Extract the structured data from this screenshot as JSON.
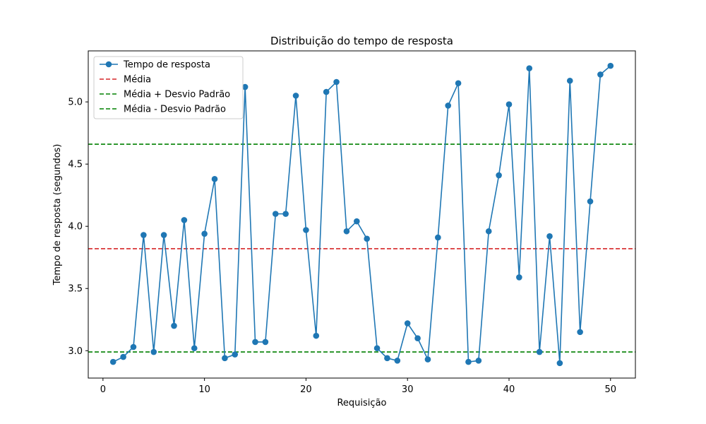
{
  "chart_data": {
    "type": "line",
    "title": "Distribuição do tempo de resposta",
    "xlabel": "Requisição",
    "ylabel": "Tempo de resposta (segundos)",
    "xlim": [
      -1.45,
      52.45
    ],
    "ylim": [
      2.78,
      5.41
    ],
    "x_ticks": [
      0,
      10,
      20,
      30,
      40,
      50
    ],
    "x_tick_labels": [
      "0",
      "10",
      "20",
      "30",
      "40",
      "50"
    ],
    "y_ticks": [
      3.0,
      3.5,
      4.0,
      4.5,
      5.0
    ],
    "y_tick_labels": [
      "3.0",
      "3.5",
      "4.0",
      "4.5",
      "5.0"
    ],
    "grid": false,
    "legend_placement": "upper-left",
    "series": [
      {
        "name": "Tempo de resposta",
        "color": "#1f77b4",
        "style": "solid",
        "marker": "circle",
        "x": [
          1,
          2,
          3,
          4,
          5,
          6,
          7,
          8,
          9,
          10,
          11,
          12,
          13,
          14,
          15,
          16,
          17,
          18,
          19,
          20,
          21,
          22,
          23,
          24,
          25,
          26,
          27,
          28,
          29,
          30,
          31,
          32,
          33,
          34,
          35,
          36,
          37,
          38,
          39,
          40,
          41,
          42,
          43,
          44,
          45,
          46,
          47,
          48,
          49,
          50
        ],
        "values": [
          2.91,
          2.95,
          3.03,
          3.93,
          2.99,
          3.93,
          3.2,
          4.05,
          3.02,
          3.94,
          4.38,
          2.94,
          2.97,
          5.12,
          3.07,
          3.07,
          4.1,
          4.1,
          5.05,
          3.97,
          3.12,
          5.08,
          5.16,
          3.96,
          4.04,
          3.9,
          3.02,
          2.94,
          2.92,
          3.22,
          3.1,
          2.93,
          3.91,
          4.97,
          5.15,
          2.91,
          2.92,
          3.96,
          4.41,
          4.98,
          3.59,
          5.27,
          2.99,
          3.92,
          2.9,
          5.17,
          3.15,
          4.2,
          5.22,
          5.29
        ]
      }
    ],
    "reference_lines": [
      {
        "name": "Média",
        "value": 3.82,
        "color": "#d62728",
        "style": "dashed"
      },
      {
        "name": "Média + Desvio Padrão",
        "value": 4.66,
        "color": "#008000",
        "style": "dashed"
      },
      {
        "name": "Média - Desvio Padrão",
        "value": 2.99,
        "color": "#008000",
        "style": "dashed"
      }
    ]
  }
}
